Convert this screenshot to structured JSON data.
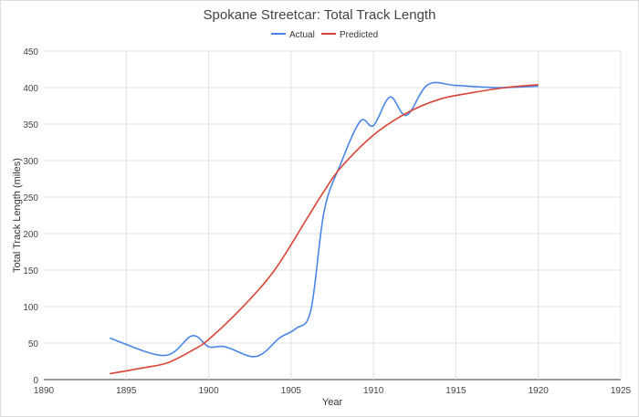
{
  "chart_data": {
    "type": "line",
    "title": "Spokane Streetcar: Total Track Length",
    "xlabel": "Year",
    "ylabel": "Total Track Length (miles)",
    "xlim": [
      1890,
      1925
    ],
    "ylim": [
      0,
      450
    ],
    "xticks": [
      1890,
      1895,
      1900,
      1905,
      1910,
      1915,
      1920,
      1925
    ],
    "yticks": [
      0,
      50,
      100,
      150,
      200,
      250,
      300,
      350,
      400,
      450
    ],
    "grid": true,
    "legend": "top",
    "series": [
      {
        "name": "Actual",
        "color": "#4a86e8",
        "x": [
          1894,
          1897.3,
          1899,
          1900,
          1901,
          1902.5,
          1903.3,
          1904.3,
          1905.3,
          1906.2,
          1907,
          1908,
          1909.2,
          1910,
          1911,
          1912,
          1913.3,
          1915,
          1917.5,
          1920
        ],
        "y": [
          57,
          33,
          60,
          45,
          45,
          32,
          36,
          57,
          70,
          95,
          230,
          295,
          354,
          348,
          387,
          362,
          404,
          403,
          400,
          402
        ]
      },
      {
        "name": "Predicted",
        "color": "#db4437",
        "x": [
          1894,
          1896,
          1897.5,
          1899,
          1900,
          1902,
          1904,
          1906,
          1907,
          1908,
          1910,
          1912,
          1914,
          1916,
          1918,
          1920
        ],
        "y": [
          8,
          16,
          23,
          40,
          55,
          98,
          150,
          222,
          258,
          290,
          335,
          365,
          384,
          393,
          400,
          404
        ]
      }
    ]
  }
}
